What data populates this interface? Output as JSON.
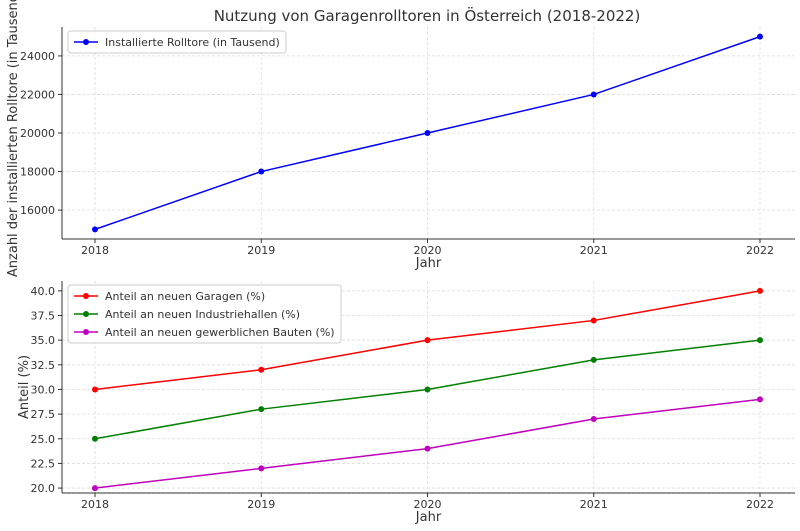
{
  "title": "Nutzung von Garagenrolltoren in Österreich (2018-2022)",
  "chart_data": [
    {
      "type": "line",
      "title": "Nutzung von Garagenrolltoren in Österreich (2018-2022)",
      "xlabel": "Jahr",
      "ylabel": "Anzahl der installierten Rolltore (in Tausend)",
      "x": [
        "2018",
        "2019",
        "2020",
        "2021",
        "2022"
      ],
      "ylim": [
        14500,
        25500
      ],
      "yticks": [
        16000,
        18000,
        20000,
        22000,
        24000
      ],
      "ytick_labels": [
        "16000",
        "18000",
        "20000",
        "22000",
        "24000"
      ],
      "grid": true,
      "legend_position": "top-left",
      "series": [
        {
          "name": "Installierte Rolltore (in Tausend)",
          "color": "#0000ff",
          "values": [
            15000,
            18000,
            20000,
            22000,
            25000
          ]
        }
      ]
    },
    {
      "type": "line",
      "xlabel": "Jahr",
      "ylabel": "Anteil (%)",
      "x": [
        "2018",
        "2019",
        "2020",
        "2021",
        "2022"
      ],
      "ylim": [
        19.5,
        41
      ],
      "yticks": [
        20.0,
        22.5,
        25.0,
        27.5,
        30.0,
        32.5,
        35.0,
        37.5,
        40.0
      ],
      "ytick_labels": [
        "20.0",
        "22.5",
        "25.0",
        "27.5",
        "30.0",
        "32.5",
        "35.0",
        "37.5",
        "40.0"
      ],
      "grid": true,
      "legend_position": "top-left",
      "series": [
        {
          "name": "Anteil an neuen Garagen (%)",
          "color": "#ff0000",
          "values": [
            30,
            32,
            35,
            37,
            40
          ]
        },
        {
          "name": "Anteil an neuen Industriehallen (%)",
          "color": "#008000",
          "values": [
            25,
            28,
            30,
            33,
            35
          ]
        },
        {
          "name": "Anteil an neuen gewerblichen Bauten (%)",
          "color": "#bf00bf",
          "values": [
            20,
            22,
            24,
            27,
            29
          ]
        }
      ]
    }
  ]
}
